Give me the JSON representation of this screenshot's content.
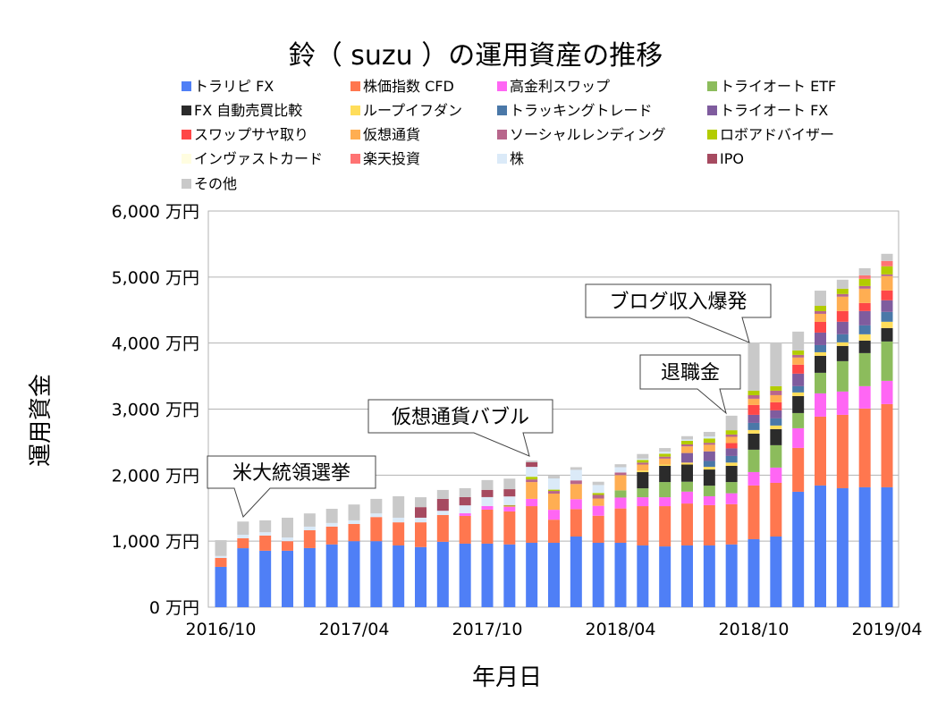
{
  "chart_data": {
    "type": "bar",
    "stacked": true,
    "title": "鈴（ suzu ）の運用資産の推移",
    "xlabel": "年月日",
    "ylabel": "運用資金",
    "ylim": [
      0,
      6000
    ],
    "yticks": [
      0,
      1000,
      2000,
      3000,
      4000,
      5000,
      6000
    ],
    "ytick_labels": [
      "0 万円",
      "1,000 万円",
      "2,000 万円",
      "3,000 万円",
      "4,000 万円",
      "5,000 万円",
      "6,000 万円"
    ],
    "xtick_labels": [
      "2016/10",
      "2017/04",
      "2017/10",
      "2018/04",
      "2018/10",
      "2019/04"
    ],
    "grid": true,
    "legend_position": "top",
    "categories": [
      "2016/10",
      "2016/11",
      "2016/12",
      "2017/01",
      "2017/02",
      "2017/03",
      "2017/04",
      "2017/05",
      "2017/06",
      "2017/07",
      "2017/08",
      "2017/09",
      "2017/10",
      "2017/11",
      "2017/12",
      "2018/01",
      "2018/02",
      "2018/03",
      "2018/04",
      "2018/05",
      "2018/06",
      "2018/07",
      "2018/08",
      "2018/09",
      "2018/10",
      "2018/11",
      "2018/12",
      "2019/01",
      "2019/02",
      "2019/03",
      "2019/04"
    ],
    "series": [
      {
        "name": "トラリピ FX",
        "color": "#4f7ff6",
        "values": [
          610,
          893,
          855,
          855,
          895,
          950,
          1000,
          1000,
          935,
          910,
          990,
          962,
          962,
          950,
          975,
          975,
          1070,
          975,
          975,
          935,
          920,
          935,
          935,
          950,
          1030,
          1070,
          1748,
          1843,
          1802,
          1816,
          1816
        ]
      },
      {
        "name": "株価指数 CFD",
        "color": "#ff774f",
        "values": [
          135,
          150,
          230,
          145,
          270,
          270,
          260,
          365,
          350,
          375,
          405,
          420,
          515,
          500,
          555,
          350,
          415,
          410,
          520,
          595,
          610,
          635,
          610,
          610,
          813,
          813,
          664,
          1043,
          1111,
          1192,
          1260
        ]
      },
      {
        "name": "高金利スワップ",
        "color": "#ff66f4",
        "values": [
          0,
          0,
          0,
          0,
          0,
          0,
          0,
          0,
          0,
          0,
          0,
          40,
          55,
          67,
          110,
          150,
          150,
          150,
          165,
          135,
          135,
          180,
          135,
          165,
          203,
          231,
          298,
          352,
          353,
          339,
          352
        ]
      },
      {
        "name": "トライオート ETF",
        "color": "#8cbc5c",
        "values": [
          0,
          0,
          0,
          0,
          0,
          0,
          0,
          0,
          0,
          0,
          0,
          0,
          0,
          0,
          0,
          0,
          0,
          0,
          110,
          135,
          230,
          150,
          160,
          170,
          339,
          339,
          230,
          312,
          460,
          501,
          596
        ]
      },
      {
        "name": "FX 自動売買比較",
        "color": "#2b2b2b",
        "values": [
          0,
          0,
          0,
          0,
          0,
          0,
          0,
          0,
          0,
          0,
          0,
          0,
          0,
          0,
          0,
          0,
          0,
          0,
          0,
          245,
          245,
          260,
          245,
          245,
          244,
          244,
          258,
          257,
          231,
          190,
          204
        ]
      },
      {
        "name": "ループイフダン",
        "color": "#ffdd5a",
        "values": [
          0,
          0,
          0,
          0,
          0,
          0,
          0,
          0,
          0,
          0,
          0,
          0,
          0,
          0,
          0,
          0,
          0,
          0,
          0,
          25,
          20,
          30,
          40,
          50,
          54,
          54,
          54,
          54,
          54,
          95,
          95
        ]
      },
      {
        "name": "トラッキングトレード",
        "color": "#4a78a8",
        "values": [
          0,
          0,
          0,
          0,
          0,
          0,
          0,
          0,
          0,
          0,
          0,
          0,
          0,
          0,
          0,
          0,
          0,
          0,
          0,
          0,
          0,
          0,
          90,
          100,
          108,
          108,
          95,
          108,
          122,
          135,
          149
        ]
      },
      {
        "name": "トライオート FX",
        "color": "#7f5c9e",
        "values": [
          0,
          0,
          0,
          0,
          0,
          0,
          0,
          0,
          0,
          0,
          0,
          0,
          0,
          0,
          0,
          0,
          0,
          0,
          0,
          0,
          0,
          145,
          145,
          115,
          122,
          122,
          190,
          190,
          190,
          217,
          176
        ]
      },
      {
        "name": "スワップサヤ取り",
        "color": "#ff4747",
        "values": [
          0,
          0,
          0,
          0,
          0,
          0,
          0,
          0,
          0,
          0,
          0,
          0,
          0,
          0,
          0,
          0,
          0,
          0,
          0,
          0,
          0,
          0,
          0,
          80,
          149,
          122,
          136,
          162,
          163,
          122,
          149
        ]
      },
      {
        "name": "仮想通貨",
        "color": "#ffae52",
        "values": [
          0,
          0,
          0,
          0,
          0,
          0,
          0,
          0,
          0,
          0,
          0,
          0,
          0,
          10,
          255,
          245,
          230,
          110,
          230,
          90,
          90,
          100,
          100,
          95,
          95,
          108,
          108,
          122,
          217,
          217,
          217
        ]
      },
      {
        "name": "ソーシャルレンディング",
        "color": "#b8668c",
        "values": [
          0,
          0,
          0,
          0,
          0,
          0,
          0,
          0,
          0,
          0,
          0,
          0,
          0,
          10,
          40,
          40,
          55,
          55,
          40,
          30,
          30,
          30,
          30,
          35,
          53,
          68,
          40,
          40,
          40,
          40,
          27
        ]
      },
      {
        "name": "ロボアドバイザー",
        "color": "#b3cc00",
        "values": [
          0,
          0,
          0,
          0,
          0,
          0,
          0,
          0,
          0,
          0,
          0,
          0,
          0,
          10,
          40,
          20,
          0,
          30,
          0,
          40,
          45,
          55,
          65,
          65,
          70,
          68,
          68,
          81,
          81,
          108,
          122
        ]
      },
      {
        "name": "インヴァストカード",
        "color": "#fffde0",
        "values": [
          0,
          0,
          0,
          0,
          0,
          0,
          0,
          0,
          0,
          0,
          0,
          0,
          0,
          0,
          0,
          0,
          0,
          0,
          0,
          0,
          0,
          0,
          0,
          0,
          0,
          0,
          0,
          0,
          0,
          0,
          0
        ]
      },
      {
        "name": "楽天投資",
        "color": "#ff7373",
        "values": [
          0,
          0,
          0,
          0,
          0,
          0,
          0,
          0,
          0,
          0,
          0,
          0,
          0,
          0,
          0,
          0,
          0,
          0,
          0,
          0,
          0,
          0,
          0,
          0,
          0,
          0,
          0,
          0,
          0,
          54,
          81
        ]
      },
      {
        "name": "株",
        "color": "#dbeaf8",
        "values": [
          30,
          54,
          50,
          55,
          55,
          55,
          55,
          55,
          70,
          70,
          65,
          120,
          135,
          130,
          150,
          170,
          160,
          120,
          80,
          20,
          30,
          20,
          30,
          0,
          0,
          0,
          0,
          0,
          0,
          0,
          0
        ]
      },
      {
        "name": "IPO",
        "color": "#a64a60",
        "values": [
          0,
          0,
          0,
          0,
          0,
          0,
          0,
          0,
          0,
          160,
          180,
          125,
          110,
          110,
          70,
          0,
          0,
          0,
          0,
          0,
          0,
          0,
          0,
          0,
          0,
          0,
          0,
          0,
          0,
          0,
          0
        ]
      },
      {
        "name": "その他",
        "color": "#c9c9c9",
        "values": [
          240,
          200,
          180,
          300,
          200,
          215,
          240,
          220,
          325,
          150,
          135,
          135,
          148,
          160,
          25,
          40,
          40,
          50,
          45,
          70,
          55,
          50,
          70,
          220,
          730,
          664,
          285,
          230,
          136,
          108,
          108
        ]
      }
    ],
    "annotations": [
      {
        "text": "米大統領選挙",
        "target": "2016/11"
      },
      {
        "text": "仮想通貨バブル",
        "target": "2017/12"
      },
      {
        "text": "退職金",
        "target": "2018/09"
      },
      {
        "text": "ブログ収入爆発",
        "target": "2018/10"
      }
    ]
  }
}
